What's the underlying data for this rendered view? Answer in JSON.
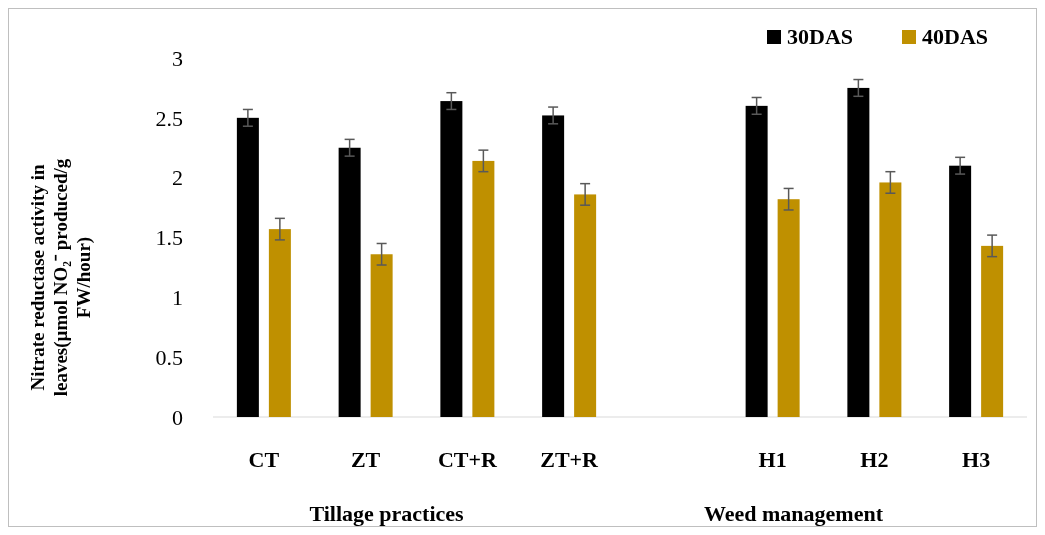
{
  "chart_data": {
    "type": "bar",
    "ylabel": "Nitrate reductase activity in leaves(µmol NO₂⁻ produced/g FW/hour)",
    "categories": [
      "CT",
      "ZT",
      "CT+R",
      "ZT+R",
      null,
      "H1",
      "H2",
      "H3"
    ],
    "series": [
      {
        "name": "30DAS",
        "color": "#000000",
        "values": [
          2.5,
          2.25,
          2.64,
          2.52,
          null,
          2.6,
          2.75,
          2.1
        ],
        "errors": [
          0.07,
          0.07,
          0.07,
          0.07,
          null,
          0.07,
          0.07,
          0.07
        ]
      },
      {
        "name": "40DAS",
        "color": "#bf9000",
        "values": [
          1.57,
          1.36,
          2.14,
          1.86,
          null,
          1.82,
          1.96,
          1.43
        ],
        "errors": [
          0.09,
          0.09,
          0.09,
          0.09,
          null,
          0.09,
          0.09,
          0.09
        ]
      }
    ],
    "ylim": [
      0,
      3
    ],
    "yticks": [
      0,
      0.5,
      1,
      1.5,
      2,
      2.5,
      3
    ],
    "grid": false,
    "legend": "top right",
    "annotations": [
      "Tillage practices",
      "Weed management"
    ]
  }
}
